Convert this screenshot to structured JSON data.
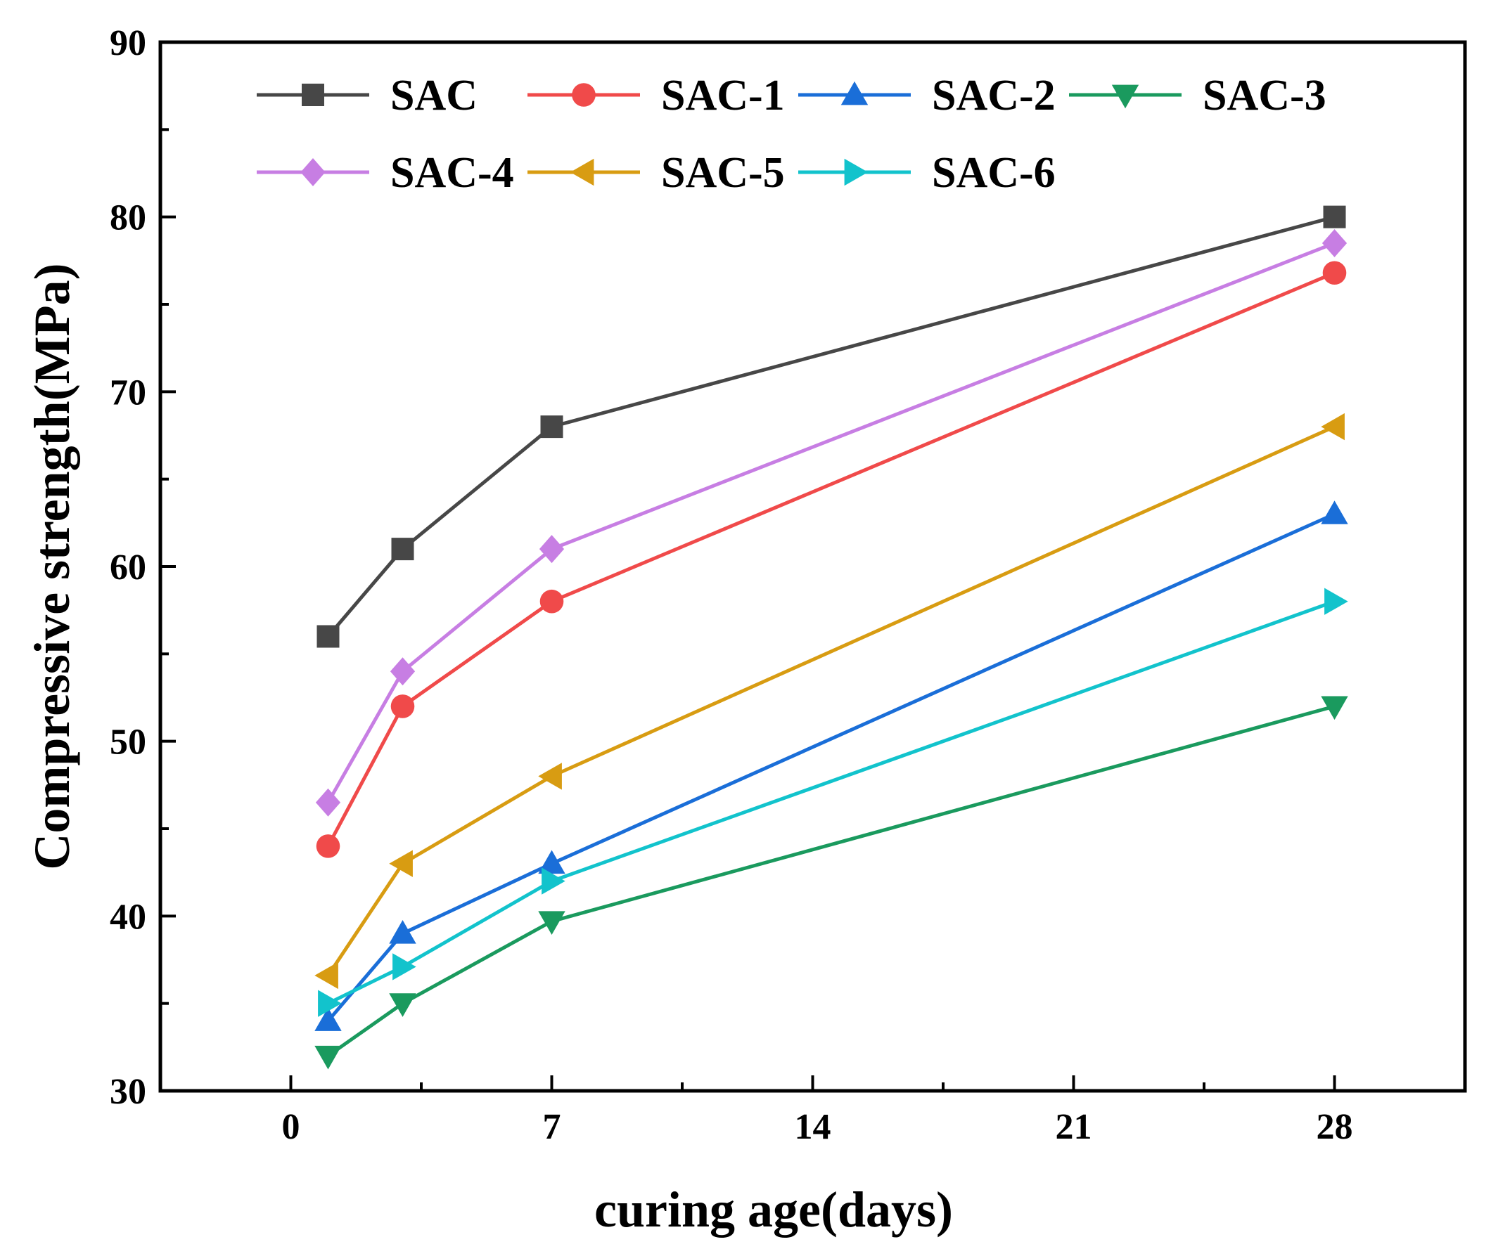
{
  "chart_data": {
    "type": "line",
    "title": "",
    "xlabel": "curing age(days)",
    "ylabel": "Compressive strength(MPa)",
    "xlim": [
      -3.5,
      31.5
    ],
    "ylim": [
      30,
      90
    ],
    "xticks": [
      0,
      7,
      14,
      21,
      28
    ],
    "xtick_labels": [
      "0",
      "7",
      "14",
      "21",
      "28"
    ],
    "yticks": [
      30,
      40,
      50,
      60,
      70,
      80,
      90
    ],
    "ytick_labels": [
      "30",
      "40",
      "50",
      "60",
      "70",
      "80",
      "90"
    ],
    "x": [
      1,
      3,
      7,
      28
    ],
    "grid": false,
    "legend_position": "top",
    "series": [
      {
        "name": "SAC",
        "values": [
          56,
          61,
          68,
          80
        ],
        "color": "#474747",
        "marker": "square"
      },
      {
        "name": "SAC-1",
        "values": [
          44,
          52,
          58,
          76.8
        ],
        "color": "#f04a4a",
        "marker": "circle"
      },
      {
        "name": "SAC-2",
        "values": [
          34,
          39,
          43,
          63
        ],
        "color": "#1a6ed8",
        "marker": "triangle-up"
      },
      {
        "name": "SAC-3",
        "values": [
          32,
          35,
          39.7,
          52
        ],
        "color": "#1a9a5e",
        "marker": "triangle-down"
      },
      {
        "name": "SAC-4",
        "values": [
          46.5,
          54,
          61,
          78.5
        ],
        "color": "#c77ee3",
        "marker": "diamond"
      },
      {
        "name": "SAC-5",
        "values": [
          36.6,
          43,
          48,
          68
        ],
        "color": "#d89c12",
        "marker": "triangle-left"
      },
      {
        "name": "SAC-6",
        "values": [
          35,
          37.1,
          42,
          58
        ],
        "color": "#12c3cc",
        "marker": "triangle-right"
      }
    ]
  }
}
